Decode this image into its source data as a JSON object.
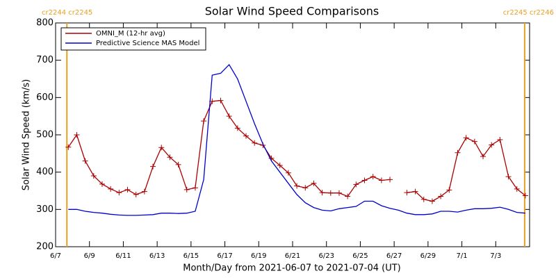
{
  "chart_data": {
    "type": "line",
    "title": "Solar Wind Speed Comparisons",
    "xlabel": "Month/Day from 2021-06-07 to 2021-07-04 (UT)",
    "ylabel": "Solar Wind Speed (km/s)",
    "xlim": [
      "2021-06-07T00:00",
      "2021-07-05T00:00"
    ],
    "xticks": [
      {
        "value": "2021-06-07T00:00",
        "label": "6/7"
      },
      {
        "value": "2021-06-09T00:00",
        "label": "6/9"
      },
      {
        "value": "2021-06-11T00:00",
        "label": "6/11"
      },
      {
        "value": "2021-06-13T00:00",
        "label": "6/13"
      },
      {
        "value": "2021-06-15T00:00",
        "label": "6/15"
      },
      {
        "value": "2021-06-17T00:00",
        "label": "6/17"
      },
      {
        "value": "2021-06-19T00:00",
        "label": "6/19"
      },
      {
        "value": "2021-06-21T00:00",
        "label": "6/21"
      },
      {
        "value": "2021-06-23T00:00",
        "label": "6/23"
      },
      {
        "value": "2021-06-25T00:00",
        "label": "6/25"
      },
      {
        "value": "2021-06-27T00:00",
        "label": "6/27"
      },
      {
        "value": "2021-06-29T00:00",
        "label": "6/29"
      },
      {
        "value": "2021-07-01T00:00",
        "label": "7/1"
      },
      {
        "value": "2021-07-03T00:00",
        "label": "7/3"
      }
    ],
    "ylim": [
      200,
      800
    ],
    "yticks": [
      200,
      300,
      400,
      500,
      600,
      700,
      800
    ],
    "legend": "upper left",
    "cr_boundaries": [
      {
        "x": "2021-06-07T16:00",
        "label": "cr2244 cr2245",
        "color": "#e8a020"
      },
      {
        "x": "2021-07-04T17:00",
        "label": "cr2245 cr2246",
        "color": "#e8a020"
      }
    ],
    "x": [
      "2021-06-07T18:00",
      "2021-06-08T06:00",
      "2021-06-08T18:00",
      "2021-06-09T06:00",
      "2021-06-09T18:00",
      "2021-06-10T06:00",
      "2021-06-10T18:00",
      "2021-06-11T06:00",
      "2021-06-11T18:00",
      "2021-06-12T06:00",
      "2021-06-12T18:00",
      "2021-06-13T06:00",
      "2021-06-13T18:00",
      "2021-06-14T06:00",
      "2021-06-14T18:00",
      "2021-06-15T06:00",
      "2021-06-15T18:00",
      "2021-06-16T06:00",
      "2021-06-16T18:00",
      "2021-06-17T06:00",
      "2021-06-17T18:00",
      "2021-06-18T06:00",
      "2021-06-18T18:00",
      "2021-06-19T06:00",
      "2021-06-19T18:00",
      "2021-06-20T06:00",
      "2021-06-20T18:00",
      "2021-06-21T06:00",
      "2021-06-21T18:00",
      "2021-06-22T06:00",
      "2021-06-22T18:00",
      "2021-06-23T06:00",
      "2021-06-23T18:00",
      "2021-06-24T06:00",
      "2021-06-24T18:00",
      "2021-06-25T06:00",
      "2021-06-25T18:00",
      "2021-06-26T06:00",
      "2021-06-26T18:00",
      "2021-06-27T06:00",
      "2021-06-27T18:00",
      "2021-06-28T06:00",
      "2021-06-28T18:00",
      "2021-06-29T06:00",
      "2021-06-29T18:00",
      "2021-06-30T06:00",
      "2021-06-30T18:00",
      "2021-07-01T06:00",
      "2021-07-01T18:00",
      "2021-07-02T06:00",
      "2021-07-02T18:00",
      "2021-07-03T06:00",
      "2021-07-03T18:00",
      "2021-07-04T06:00",
      "2021-07-04T18:00"
    ],
    "series": [
      {
        "name": "OMNI_M (12-hr avg)",
        "color": "#aa0000",
        "marker": "+",
        "values": [
          467,
          500,
          430,
          390,
          368,
          355,
          345,
          353,
          340,
          348,
          415,
          466,
          440,
          420,
          353,
          358,
          537,
          590,
          592,
          550,
          518,
          497,
          478,
          472,
          437,
          418,
          398,
          363,
          358,
          370,
          345,
          344,
          344,
          335,
          367,
          378,
          388,
          378,
          380,
          null,
          345,
          348,
          327,
          322,
          335,
          352,
          452,
          492,
          482,
          442,
          473,
          487,
          388,
          355,
          337
        ]
      },
      {
        "name": "Predictive Science MAS Model",
        "color": "#0000cc",
        "values": [
          300,
          300,
          295,
          292,
          290,
          287,
          285,
          284,
          284,
          285,
          286,
          290,
          290,
          289,
          290,
          295,
          380,
          660,
          665,
          688,
          650,
          590,
          530,
          475,
          430,
          400,
          370,
          340,
          318,
          305,
          298,
          296,
          302,
          305,
          308,
          322,
          322,
          310,
          303,
          298,
          290,
          286,
          286,
          288,
          295,
          295,
          293,
          298,
          302,
          302,
          303,
          306,
          300,
          292,
          290
        ]
      }
    ]
  }
}
